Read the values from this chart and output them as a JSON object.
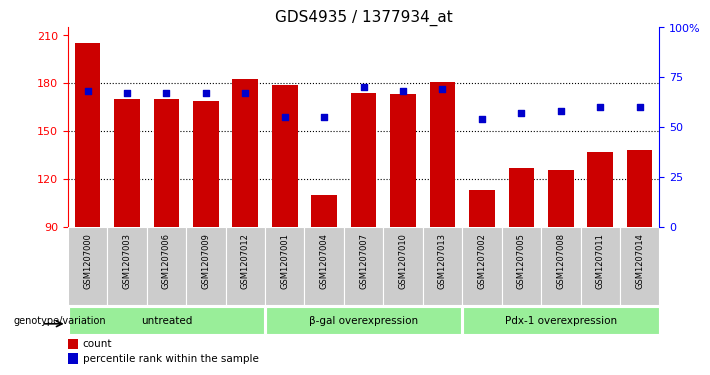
{
  "title": "GDS4935 / 1377934_at",
  "samples": [
    "GSM1207000",
    "GSM1207003",
    "GSM1207006",
    "GSM1207009",
    "GSM1207012",
    "GSM1207001",
    "GSM1207004",
    "GSM1207007",
    "GSM1207010",
    "GSM1207013",
    "GSM1207002",
    "GSM1207005",
    "GSM1207008",
    "GSM1207011",
    "GSM1207014"
  ],
  "counts": [
    205,
    170,
    170,
    169,
    183,
    179,
    110,
    174,
    173,
    181,
    113,
    127,
    126,
    137,
    138
  ],
  "percentiles": [
    68,
    67,
    67,
    67,
    67,
    55,
    55,
    70,
    68,
    69,
    54,
    57,
    58,
    60,
    60
  ],
  "groups": [
    {
      "label": "untreated",
      "start": 0,
      "end": 5
    },
    {
      "label": "β-gal overexpression",
      "start": 5,
      "end": 10
    },
    {
      "label": "Pdx-1 overexpression",
      "start": 10,
      "end": 15
    }
  ],
  "ylim_left": [
    90,
    215
  ],
  "ylim_right": [
    0,
    100
  ],
  "yticks_left": [
    90,
    120,
    150,
    180,
    210
  ],
  "yticks_right": [
    0,
    25,
    50,
    75,
    100
  ],
  "bar_color": "#cc0000",
  "dot_color": "#0000cc",
  "cell_bg_color": "#cccccc",
  "group_bg_color": "#99ee99",
  "title_fontsize": 11,
  "bar_width": 0.65,
  "genotype_label": "genotype/variation"
}
